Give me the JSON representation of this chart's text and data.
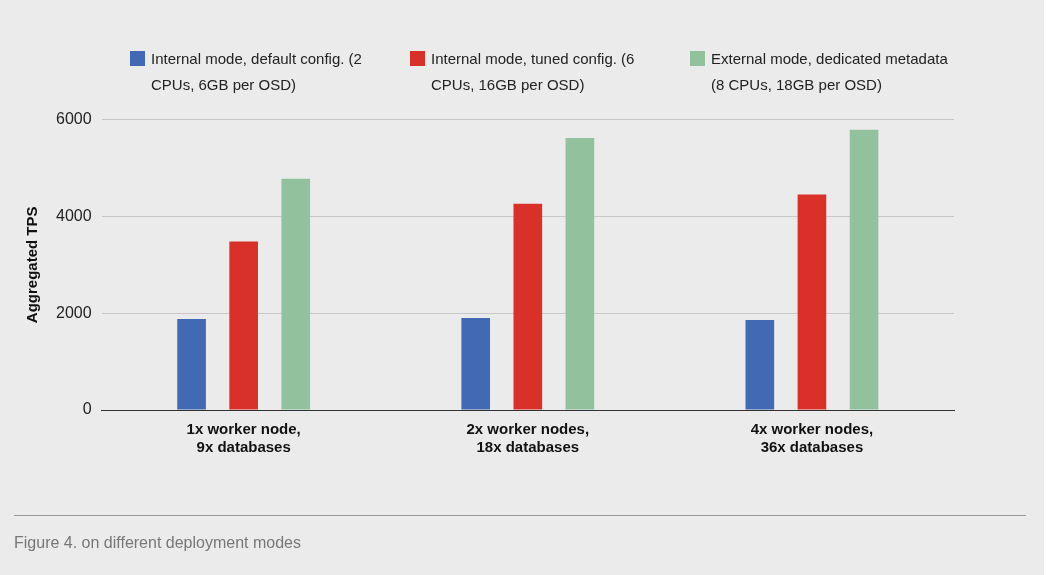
{
  "chart_data": {
    "type": "bar",
    "ylabel": "Aggregated TPS",
    "categories": [
      "1x worker node, 9x databases",
      "2x worker nodes, 18x databases",
      "4x worker nodes, 36x databases"
    ],
    "series": [
      {
        "name": "Internal mode, default config. (2 CPUs, 6GB per OSD)",
        "color": "#4169b4",
        "values": [
          1880,
          1900,
          1860
        ]
      },
      {
        "name": "Internal mode, tuned config. (6 CPUs, 16GB per OSD)",
        "color": "#d9312a",
        "values": [
          3480,
          4260,
          4450
        ]
      },
      {
        "name": "External mode, dedicated metadata (8 CPUs, 18GB per OSD)",
        "color": "#92c19e",
        "values": [
          4780,
          5620,
          5790
        ]
      }
    ],
    "ylim": [
      0,
      6000
    ],
    "yticks": [
      0,
      2000,
      4000,
      6000
    ],
    "grid": "y",
    "legend": "top",
    "annotations": [
      "Figure 4. on different deployment modes"
    ]
  }
}
